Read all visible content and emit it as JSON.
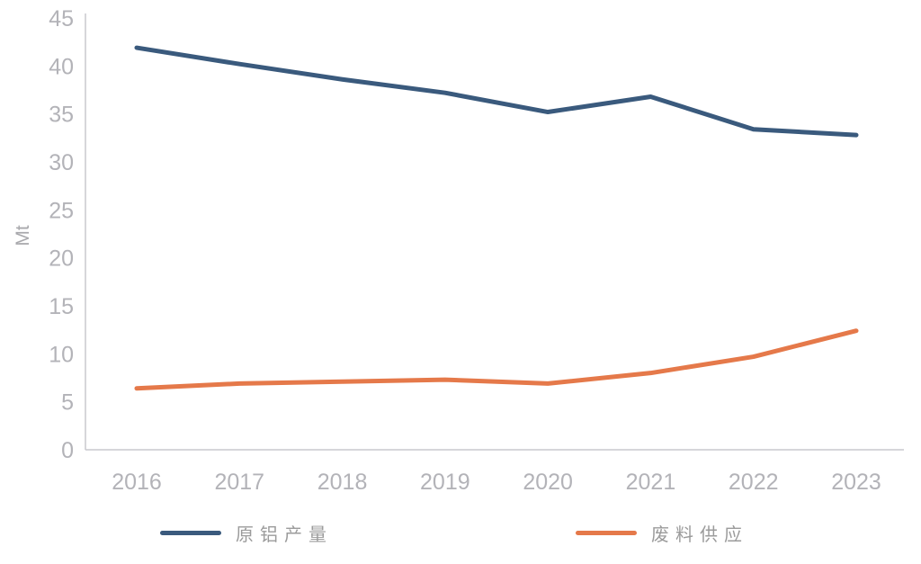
{
  "chart_data": {
    "type": "line",
    "title": "",
    "xlabel": "",
    "ylabel": "Mt",
    "categories": [
      "2016",
      "2017",
      "2018",
      "2019",
      "2020",
      "2021",
      "2022",
      "2023"
    ],
    "series": [
      {
        "name": "原铝产量",
        "color": "#3a5a7d",
        "values": [
          41.9,
          40.2,
          38.6,
          37.2,
          35.2,
          36.8,
          33.4,
          32.8
        ]
      },
      {
        "name": "废料供应",
        "color": "#e5794a",
        "values": [
          6.4,
          6.9,
          7.1,
          7.3,
          6.9,
          8.0,
          9.7,
          12.4
        ]
      }
    ],
    "ylim": [
      0,
      45
    ],
    "ytick_step": 5,
    "grid": false,
    "legend_position": "bottom",
    "axis_color": "#c9c9cd",
    "tick_label_color": "#b3b3b8",
    "line_width": 5
  }
}
